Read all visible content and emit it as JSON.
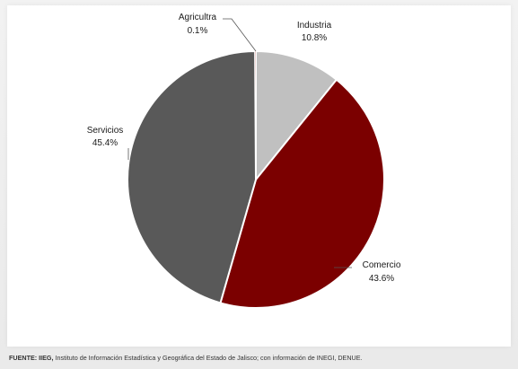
{
  "chart_data": {
    "type": "pie",
    "title": "",
    "slices": [
      {
        "label": "Industria",
        "value": 10.8,
        "value_label": "10.8%",
        "color": "#c0c0c0"
      },
      {
        "label": "Comercio",
        "value": 43.6,
        "value_label": "43.6%",
        "color": "#7b0000"
      },
      {
        "label": "Servicios",
        "value": 45.4,
        "value_label": "45.4%",
        "color": "#595959"
      },
      {
        "label": "Agricultra",
        "value": 0.1,
        "value_label": "0.1%",
        "color": "#c0504d"
      }
    ],
    "start_angle": "12 o'clock",
    "direction": "clockwise",
    "legend": "none"
  },
  "source": {
    "prefix": "FUENTE: IIEG,",
    "text": " Instituto de Información Estadística y Geográfica del Estado de Jalisco; con información de INEGI, DENUE."
  }
}
